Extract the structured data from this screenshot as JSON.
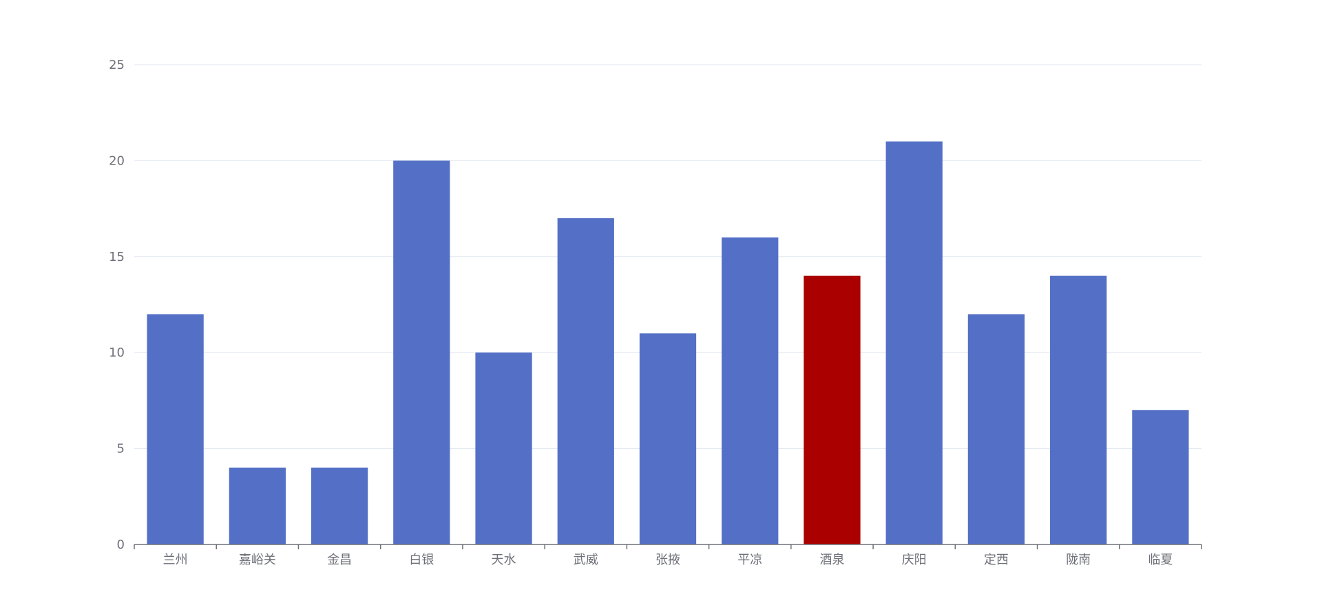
{
  "chart_data": {
    "type": "bar",
    "title": "",
    "xlabel": "",
    "ylabel": "",
    "categories": [
      "兰州",
      "嘉峪关",
      "金昌",
      "白银",
      "天水",
      "武威",
      "张掖",
      "平凉",
      "酒泉",
      "庆阳",
      "定西",
      "陇南",
      "临夏"
    ],
    "values": [
      12,
      4,
      4,
      20,
      10,
      17,
      11,
      16,
      14,
      21,
      12,
      14,
      7
    ],
    "highlight_index": 8,
    "ylim": [
      0,
      25
    ],
    "yticks": [
      0,
      5,
      10,
      15,
      20,
      25
    ],
    "grid": true,
    "legend": "none",
    "colors": {
      "bar": "#5470c6",
      "highlight": "#aa0000",
      "grid": "#e0e6f1",
      "axis": "#6e7079",
      "label": "#6e7079"
    }
  }
}
